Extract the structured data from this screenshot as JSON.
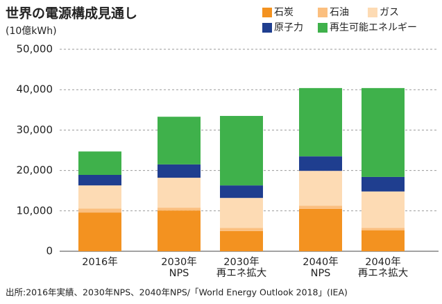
{
  "chart_data": {
    "type": "stacked_bar",
    "title": "世界の電源構成見通し",
    "y_label": "(10億kWh)",
    "source": "出所:2016年実績、2030年NPS、2040年NPS/「World Energy Outlook 2018」(IEA)",
    "categories": [
      "2016年",
      "2030年\nNPS",
      "2030年\n再エネ拡大",
      "2040年\nNPS",
      "2040年\n再エネ拡大"
    ],
    "series": [
      {
        "name": "石炭",
        "color": "#f39220",
        "values": [
          9600,
          10100,
          5000,
          10500,
          5200
        ]
      },
      {
        "name": "石油",
        "color": "#fbbf7f",
        "values": [
          1000,
          700,
          800,
          800,
          600
        ]
      },
      {
        "name": "ガス",
        "color": "#fddbb4",
        "values": [
          5700,
          7400,
          7400,
          8600,
          9000
        ]
      },
      {
        "name": "原子力",
        "color": "#1f3e8f",
        "values": [
          2600,
          3300,
          3100,
          3600,
          3600
        ]
      },
      {
        "name": "再生可能エネルギー",
        "color": "#3fb14b",
        "values": [
          5800,
          11800,
          17200,
          16900,
          22000
        ]
      }
    ],
    "ylim": [
      0,
      50000
    ],
    "yticks": [
      0,
      {
        "value": 10000,
        "label": "10,000"
      },
      {
        "value": 20000,
        "label": "20,000"
      },
      {
        "value": 30000,
        "label": "30,000"
      },
      {
        "value": 40000,
        "label": "40,000"
      },
      {
        "value": 50000,
        "label": "50,000"
      }
    ],
    "grid": true
  }
}
